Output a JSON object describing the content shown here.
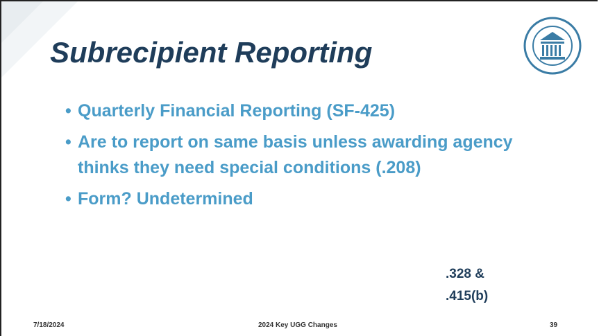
{
  "header": {
    "title": "Subrecipient Reporting"
  },
  "bullets": [
    "Quarterly Financial Reporting (SF-425)",
    "Are to report on same basis unless awarding agency thinks they need special conditions (.208)",
    "Form? Undetermined"
  ],
  "note": [
    ".328 &",
    ".415(b)"
  ],
  "footer": {
    "date": "7/18/2024",
    "center": "2024 Key UGG Changes",
    "page": "39"
  }
}
